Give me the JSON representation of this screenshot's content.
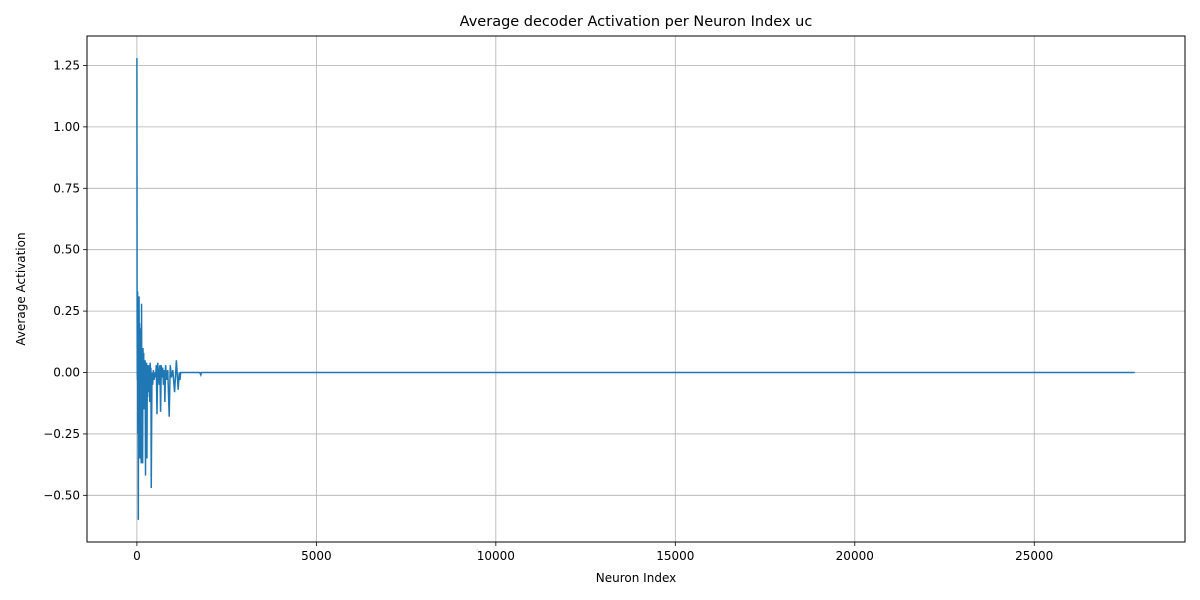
{
  "chart_data": {
    "type": "line",
    "title": "Average decoder Activation per Neuron Index uc",
    "xlabel": "Neuron Index",
    "ylabel": "Average Activation",
    "xlim": [
      -1390,
      29200
    ],
    "ylim": [
      -0.69,
      1.37
    ],
    "grid": true,
    "line_color": "#1f77b4",
    "x_ticks": [
      0,
      5000,
      10000,
      15000,
      20000,
      25000
    ],
    "y_ticks": [
      -0.5,
      -0.25,
      0.0,
      0.25,
      0.5,
      0.75,
      1.0,
      1.25
    ],
    "x_tick_labels": [
      "0",
      "5000",
      "10000",
      "15000",
      "20000",
      "25000"
    ],
    "y_tick_labels": [
      "−0.50",
      "−0.25",
      "0.00",
      "0.25",
      "0.50",
      "0.75",
      "1.00",
      "1.25"
    ],
    "series": [
      {
        "x": [
          0,
          5,
          10,
          15,
          20,
          25,
          30,
          40,
          50,
          55,
          60,
          70,
          75,
          80,
          90,
          100,
          110,
          120,
          130,
          140,
          150,
          160,
          170,
          180,
          190,
          200,
          210,
          220,
          230,
          240,
          250,
          260,
          270,
          280,
          290,
          300,
          310,
          320,
          330,
          340,
          350,
          360,
          370,
          380,
          390,
          400,
          420,
          440,
          460,
          480,
          500,
          520,
          540,
          560,
          580,
          600,
          620,
          640,
          660,
          680,
          700,
          720,
          740,
          760,
          780,
          800,
          830,
          860,
          900,
          930,
          960,
          1000,
          1050,
          1100,
          1150,
          1180,
          1200,
          1220,
          1250,
          1300,
          1400,
          1500,
          1600,
          1700,
          1750,
          1780,
          1800,
          1900,
          2000,
          3000,
          5000,
          10000,
          15000,
          20000,
          25000,
          27800
        ],
        "y": [
          1.28,
          0.35,
          0.0,
          -0.03,
          0.33,
          -0.25,
          0.3,
          -0.6,
          0.28,
          -0.3,
          0.31,
          -0.1,
          0.2,
          -0.35,
          0.15,
          -0.3,
          0.18,
          -0.37,
          0.28,
          -0.3,
          0.05,
          -0.37,
          0.1,
          -0.05,
          0.08,
          -0.15,
          0.02,
          -0.1,
          0.05,
          -0.42,
          0.02,
          -0.05,
          0.04,
          -0.35,
          0.03,
          -0.1,
          0.02,
          -0.08,
          0.03,
          -0.05,
          0.02,
          -0.12,
          0.04,
          -0.05,
          0.02,
          -0.47,
          0.0,
          -0.05,
          0.01,
          -0.03,
          0.0,
          -0.02,
          0.03,
          -0.17,
          0.04,
          0.0,
          -0.05,
          0.03,
          -0.16,
          0.03,
          -0.02,
          0.02,
          -0.05,
          0.01,
          -0.12,
          0.03,
          -0.03,
          0.01,
          -0.18,
          0.03,
          -0.02,
          0.01,
          -0.08,
          0.05,
          -0.07,
          0.0,
          -0.03,
          0.0,
          0.0,
          0.0,
          0.0,
          0.0,
          0.0,
          0.0,
          0.0,
          -0.01,
          0.0,
          0.0,
          0.0,
          0.0,
          0.0,
          0.0,
          0.0,
          0.0,
          0.0,
          0.0
        ]
      }
    ]
  }
}
